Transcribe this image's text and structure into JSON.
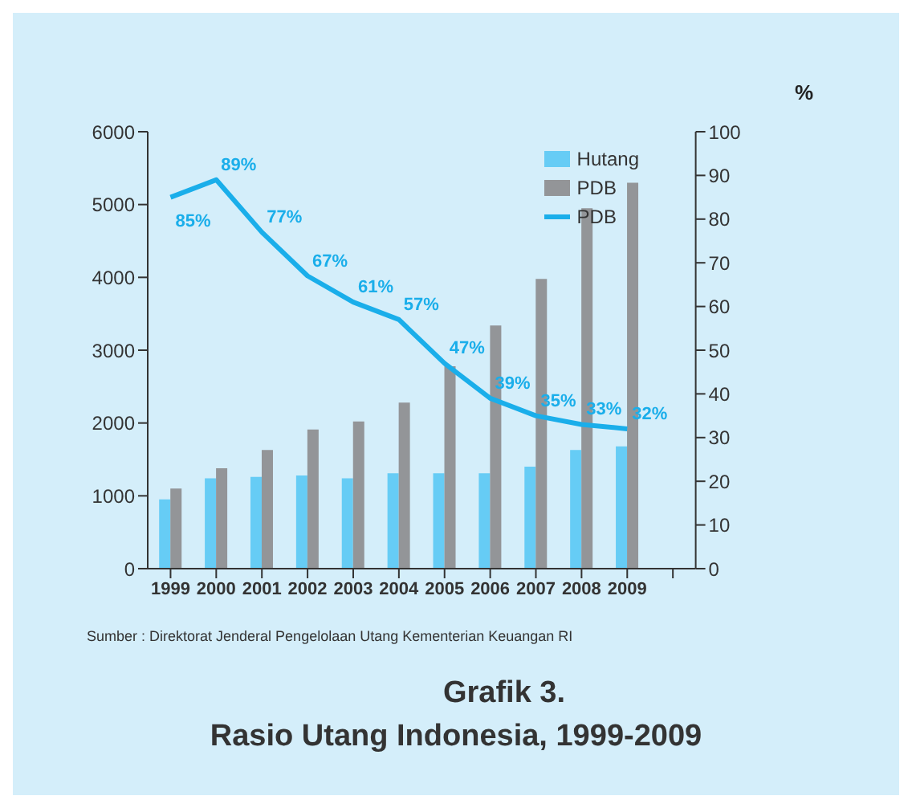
{
  "chart_data": {
    "type": "bar",
    "title": "Grafik 3.",
    "subtitle": "Rasio Utang Indonesia, 1999-2009",
    "y2label": "%",
    "annotations": [
      "Sumber : Direktorat Jenderal Pengelolaan Utang Kementerian Keuangan RI"
    ],
    "categories": [
      "1999",
      "2000",
      "2001",
      "2002",
      "2003",
      "2004",
      "2005",
      "2006",
      "2007",
      "2008",
      "2009",
      null
    ],
    "series": [
      {
        "name": "Hutang",
        "color": "#66ccf5",
        "values": [
          950,
          1240,
          1260,
          1280,
          1240,
          1310,
          1310,
          1310,
          1400,
          1630,
          1680,
          null
        ]
      },
      {
        "name": "PDB",
        "type": "line",
        "axis": "y2",
        "color": "#1aaeea",
        "values": [
          85,
          89,
          77,
          67,
          61,
          57,
          47,
          39,
          35,
          33,
          32,
          null
        ],
        "value_labels": [
          "85%",
          "89%",
          "77%",
          "67%",
          "61%",
          "57%",
          "47%",
          "39%",
          "35%",
          "33%",
          "32%",
          null
        ]
      },
      {
        "name": "PDB",
        "type": "bar",
        "color": "#939598",
        "values": [
          1100,
          1380,
          1630,
          1910,
          2020,
          2280,
          2780,
          3340,
          3980,
          4950,
          5300,
          null
        ]
      }
    ],
    "ylim": [
      0,
      6000
    ],
    "yticks": [
      0,
      1000,
      2000,
      3000,
      4000,
      5000,
      6000
    ],
    "y2lim": [
      0,
      100
    ],
    "y2ticks": [
      0,
      10,
      20,
      30,
      40,
      50,
      60,
      70,
      80,
      90,
      100
    ],
    "grid": false,
    "legend": "top right",
    "marker": "none",
    "line_style": "solid"
  }
}
